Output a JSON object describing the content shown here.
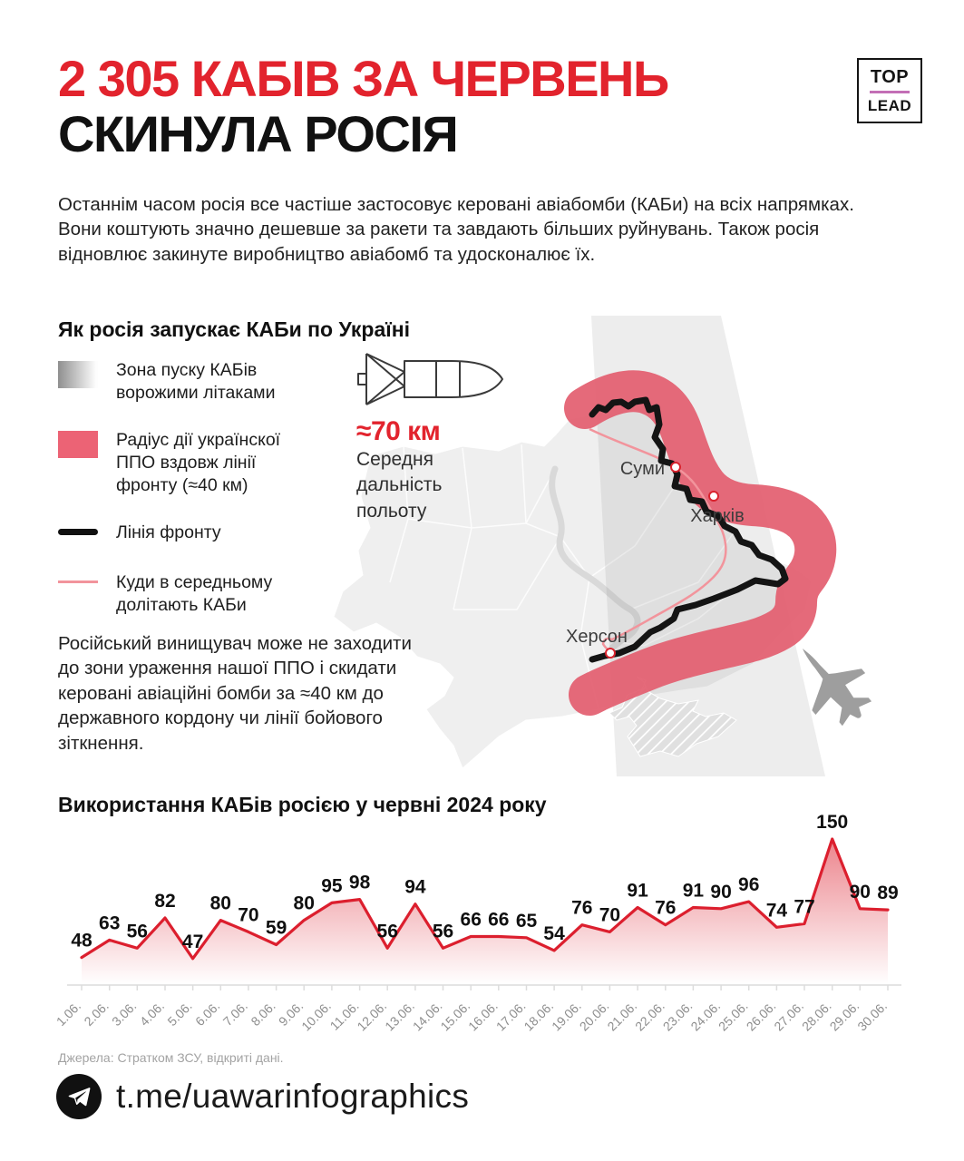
{
  "header": {
    "title_line1": "2 305 КАБІВ ЗА ЧЕРВЕНЬ",
    "title_line2": "СКИНУЛА РОСІЯ",
    "logo_top": "TOP",
    "logo_bottom": "LEAD"
  },
  "intro": "Останнім часом росія все частіше застосовує керовані авіабомби (КАБи) на всіх напрямках. Вони коштують значно дешевше за ракети та завдають більших руйнувань. Також росія відновлює закинуте виробництво авіабомб та удосконалює їх.",
  "map_section": {
    "heading": "Як росія запускає КАБи по Україні",
    "legend": [
      {
        "swatch": "gradient-gray",
        "label": "Зона пуску КАБів ворожими літаками"
      },
      {
        "swatch": "pink-area",
        "label": "Радіус дії українскої ППО вздовж лінії фронту (≈40 км)"
      },
      {
        "swatch": "black-line",
        "label": "Лінія фронту"
      },
      {
        "swatch": "pink-line",
        "label": "Куди в середньому долітають КАБи"
      }
    ],
    "bomb_range_value": "≈70 км",
    "bomb_range_caption": "Середня дальність польоту",
    "cities": {
      "sumy": "Суми",
      "kharkiv": "Харків",
      "kherson": "Херсон"
    },
    "note": "Російський винищувач може не заходити до зони ураження нашої ППО і скидати керовані авіаційні бомби за ≈40 км до державного кордону чи лінії бойового зіткнення."
  },
  "chart_data": {
    "type": "area",
    "title": "Використання КАБів росією у червні 2024 року",
    "x": [
      "1.06.",
      "2.06.",
      "3.06.",
      "4.06.",
      "5.06.",
      "6.06.",
      "7.06.",
      "8.06.",
      "9.06.",
      "10.06.",
      "11.06.",
      "12.06.",
      "13.06.",
      "14.06.",
      "15.06.",
      "16.06.",
      "17.06.",
      "18.06.",
      "19.06.",
      "20.06.",
      "21.06.",
      "22.06.",
      "23.06.",
      "24.06.",
      "25.06.",
      "26.06.",
      "27.06.",
      "28.06.",
      "29.06.",
      "30.06."
    ],
    "values": [
      48,
      63,
      56,
      82,
      47,
      80,
      70,
      59,
      80,
      95,
      98,
      56,
      94,
      56,
      66,
      66,
      65,
      54,
      76,
      70,
      91,
      76,
      91,
      90,
      96,
      74,
      77,
      150,
      90,
      89
    ],
    "total": 2305,
    "ylim": [
      25,
      155
    ],
    "line_color": "#dc1f2e",
    "grid": false,
    "xlabel": "",
    "ylabel": ""
  },
  "colors": {
    "accent_red": "#e2232d",
    "ppo_band_pink": "#e35d6f",
    "kab_reach_pink": "#f2949c",
    "front_line_black": "#141414",
    "logo_line_purple": "#c36fb5"
  },
  "footer": {
    "source": "Джерела: Стратком ЗСУ, відкриті дані.",
    "telegram_handle": "t.me/uawarinfographics"
  }
}
